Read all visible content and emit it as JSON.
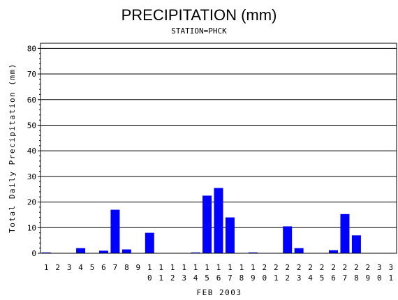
{
  "chart_data": {
    "type": "bar",
    "title": "PRECIPITATION (mm)",
    "subtitle": "STATION=PHCK",
    "xlabel": "FEB 2003",
    "ylabel": "Total Daily Precipitation (mm)",
    "ylim": [
      0,
      82
    ],
    "yticks": [
      0,
      10,
      20,
      30,
      40,
      50,
      60,
      70,
      80
    ],
    "grid": true,
    "bar_color": "#0000ff",
    "categories": [
      "1",
      "2",
      "3",
      "4",
      "5",
      "6",
      "7",
      "8",
      "9",
      "10",
      "11",
      "12",
      "13",
      "14",
      "15",
      "16",
      "17",
      "18",
      "19",
      "20",
      "21",
      "22",
      "23",
      "24",
      "25",
      "26",
      "27",
      "28",
      "29",
      "30",
      "31"
    ],
    "values": [
      0.3,
      0,
      0,
      2,
      0,
      1,
      17,
      1.5,
      0,
      8,
      0,
      0,
      0,
      0.3,
      22.5,
      25.5,
      14,
      0,
      0.3,
      0,
      0,
      10.5,
      2,
      0,
      0,
      1.2,
      15.3,
      7,
      0,
      0,
      0
    ]
  }
}
